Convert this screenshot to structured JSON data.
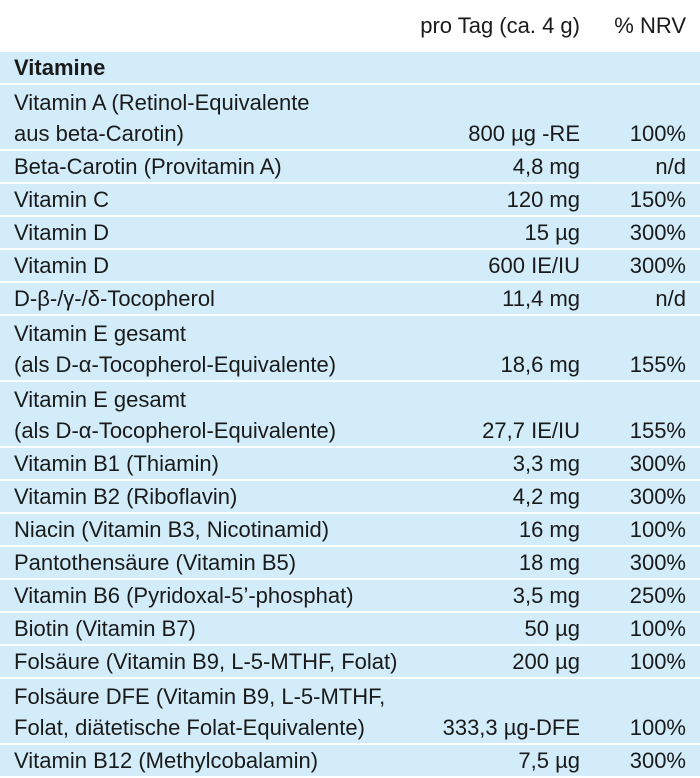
{
  "header": {
    "per_day": "pro Tag (ca. 4 g)",
    "nrv": "% NRV"
  },
  "section": "Vitamine",
  "rows": [
    {
      "name": "Vitamin A (Retinol-Equivalente\naus beta-Carotin)",
      "amount": "800 µg -RE",
      "nrv": "100%"
    },
    {
      "name": "Beta-Carotin (Provitamin A)",
      "amount": "4,8 mg",
      "nrv": "n/d"
    },
    {
      "name": "Vitamin C",
      "amount": "120 mg",
      "nrv": "150%"
    },
    {
      "name": "Vitamin D",
      "amount": "15 µg",
      "nrv": "300%"
    },
    {
      "name": "Vitamin D",
      "amount": "600 IE/IU",
      "nrv": "300%"
    },
    {
      "name": "D-β-/γ-/δ-Tocopherol",
      "amount": "11,4 mg",
      "nrv": "n/d"
    },
    {
      "name": "Vitamin E gesamt\n(als D-α-Tocopherol-Equivalente)",
      "amount": "18,6 mg",
      "nrv": "155%"
    },
    {
      "name": "Vitamin E gesamt\n(als D-α-Tocopherol-Equivalente)",
      "amount": "27,7 IE/IU",
      "nrv": "155%"
    },
    {
      "name": "Vitamin B1 (Thiamin)",
      "amount": "3,3 mg",
      "nrv": "300%"
    },
    {
      "name": "Vitamin B2 (Riboflavin)",
      "amount": "4,2 mg",
      "nrv": "300%"
    },
    {
      "name": "Niacin (Vitamin B3, Nicotinamid)",
      "amount": "16 mg",
      "nrv": "100%"
    },
    {
      "name": "Pantothensäure (Vitamin B5)",
      "amount": "18 mg",
      "nrv": "300%"
    },
    {
      "name": "Vitamin B6 (Pyridoxal-5’-phosphat)",
      "amount": "3,5 mg",
      "nrv": "250%"
    },
    {
      "name": "Biotin (Vitamin B7)",
      "amount": "50 µg",
      "nrv": "100%"
    },
    {
      "name": "Folsäure (Vitamin B9, L-5-MTHF, Folat)",
      "amount": "200 µg",
      "nrv": "100%"
    },
    {
      "name": "Folsäure DFE (Vitamin B9, L-5-MTHF,\nFolat, diätetische Folat-Equivalente)",
      "amount": "333,3 µg-DFE",
      "nrv": "100%"
    },
    {
      "name": "Vitamin B12 (Methylcobalamin)",
      "amount": "7,5 µg",
      "nrv": "300%"
    }
  ]
}
